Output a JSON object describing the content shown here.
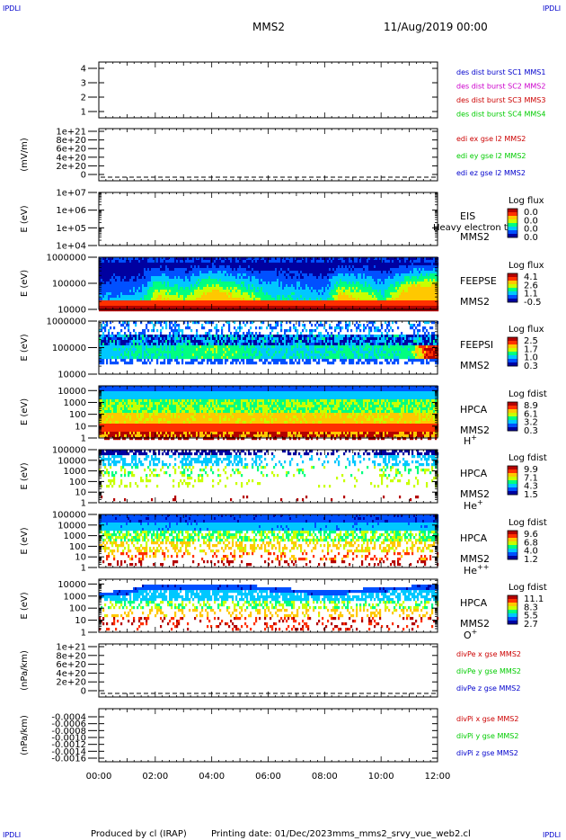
{
  "header": {
    "corner_label": "IPDLI",
    "spacecraft": "MMS2",
    "datetime": "11/Aug/2019 00:00"
  },
  "footer": {
    "produced_by": "Produced by cl (IRAP)",
    "printing_date": "Printing date: 01/Dec/2023",
    "filename": "mms_mms2_srvy_vue_web2.cl"
  },
  "colors": {
    "spectrogram_scale": [
      "#ffffff",
      "#0000a0",
      "#0050ff",
      "#00c8ff",
      "#00ff80",
      "#c8ff00",
      "#ffc800",
      "#ff3000",
      "#b40000"
    ],
    "blue": "#0000cc",
    "magenta": "#cc00cc",
    "red": "#cc0000",
    "green": "#00cc00"
  },
  "chart_data": {
    "type": "heatmap",
    "x_ticks": [
      "00:00",
      "02:00",
      "04:00",
      "06:00",
      "08:00",
      "10:00",
      "12:00"
    ],
    "x_range_hours": [
      0,
      12
    ],
    "panels": [
      {
        "id": "dist",
        "type": "line",
        "y_ticks": [
          "4",
          "3",
          "2",
          "1"
        ],
        "ylim": [
          0.6,
          4.4
        ],
        "ylabel": "",
        "legend": [
          {
            "text": "des dist burst SC1 MMS1",
            "color": "#0000cc"
          },
          {
            "text": "des dist burst SC2 MMS2",
            "color": "#cc00cc"
          },
          {
            "text": "des dist burst SC3 MMS3",
            "color": "#cc0000"
          },
          {
            "text": "des dist burst SC4 MMS4",
            "color": "#00cc00"
          }
        ]
      },
      {
        "id": "edi",
        "type": "line",
        "y_ticks": [
          "1e+21",
          "8e+20",
          "6e+20",
          "4e+20",
          "2e+20",
          "0"
        ],
        "ylim": [
          -2e+20,
          1.05e+21
        ],
        "ylabel": "(mV/m)",
        "zero_line": true,
        "legend": [
          {
            "text": "edi ex gse l2 MMS2",
            "color": "#cc0000"
          },
          {
            "text": "edi ey gse l2 MMS2",
            "color": "#00cc00"
          },
          {
            "text": "edi ez gse l2 MMS2",
            "color": "#0000cc"
          }
        ]
      },
      {
        "id": "eis",
        "type": "heatmap",
        "y_ticks": [
          "1e+07",
          "1e+06",
          "1e+05",
          "1e+04"
        ],
        "ylim_log": [
          4,
          7
        ],
        "ylabel": "E (eV)",
        "instrument": "EIS",
        "sc": "MMS2",
        "species": "",
        "overlay": "Heavy electron to",
        "cbar_title": "Log flux",
        "cbar_ticks": [
          "0.0",
          "0.0",
          "0.0",
          "0.0"
        ],
        "empty": true
      },
      {
        "id": "feepse",
        "type": "heatmap",
        "y_ticks": [
          "1000000",
          "100000",
          "10000"
        ],
        "ylim_log": [
          4,
          6
        ],
        "ylabel": "E (eV)",
        "instrument": "FEEPSE",
        "sc": "MMS2",
        "species": "",
        "cbar_title": "Log flux",
        "cbar_ticks": [
          "4.1",
          "2.6",
          "1.1",
          "-0.5"
        ],
        "profile": "feeps_e"
      },
      {
        "id": "feepsi",
        "type": "heatmap",
        "y_ticks": [
          "1000000",
          "100000",
          "10000"
        ],
        "ylim_log": [
          4,
          6
        ],
        "ylabel": "E (eV)",
        "instrument": "FEEPSI",
        "sc": "MMS2",
        "species": "",
        "cbar_title": "Log flux",
        "cbar_ticks": [
          "2.5",
          "1.7",
          "1.0",
          "0.3"
        ],
        "profile": "feeps_i"
      },
      {
        "id": "hpca_h",
        "type": "heatmap",
        "y_ticks": [
          "10000",
          "1000",
          "100",
          "10",
          "1"
        ],
        "ylim_log": [
          0,
          4.4
        ],
        "ylabel": "E (eV)",
        "instrument": "HPCA",
        "sc": "MMS2",
        "species": "H",
        "species_sup": "+",
        "cbar_title": "Log fdist",
        "cbar_ticks": [
          "8.9",
          "6.1",
          "3.2",
          "0.3"
        ],
        "profile": "hpca_h"
      },
      {
        "id": "hpca_he",
        "type": "heatmap",
        "y_ticks": [
          "100000",
          "10000",
          "1000",
          "100",
          "10",
          "1"
        ],
        "ylim_log": [
          0,
          5
        ],
        "ylabel": "E (eV)",
        "instrument": "HPCA",
        "sc": "MMS2",
        "species": "He",
        "species_sup": "+",
        "cbar_title": "Log fdist",
        "cbar_ticks": [
          "9.9",
          "7.1",
          "4.3",
          "1.5"
        ],
        "profile": "hpca_he"
      },
      {
        "id": "hpca_he2",
        "type": "heatmap",
        "y_ticks": [
          "100000",
          "10000",
          "1000",
          "100",
          "10",
          "1"
        ],
        "ylim_log": [
          0,
          5
        ],
        "ylabel": "E (eV)",
        "instrument": "HPCA",
        "sc": "MMS2",
        "species": "He",
        "species_sup": "++",
        "cbar_title": "Log fdist",
        "cbar_ticks": [
          "9.6",
          "6.8",
          "4.0",
          "1.2"
        ],
        "profile": "hpca_he2"
      },
      {
        "id": "hpca_o",
        "type": "heatmap",
        "y_ticks": [
          "10000",
          "1000",
          "100",
          "10",
          "1"
        ],
        "ylim_log": [
          0,
          4.4
        ],
        "ylabel": "E (eV)",
        "instrument": "HPCA",
        "sc": "MMS2",
        "species": "O",
        "species_sup": "+",
        "cbar_title": "Log fdist",
        "cbar_ticks": [
          "11.1",
          "8.3",
          "5.5",
          "2.7"
        ],
        "profile": "hpca_o"
      },
      {
        "id": "divpe",
        "type": "line",
        "y_ticks": [
          "1e+21",
          "8e+20",
          "6e+20",
          "4e+20",
          "2e+20",
          "0"
        ],
        "ylim": [
          -2e+20,
          1.05e+21
        ],
        "ylabel": "(nPa/km)",
        "zero_line": true,
        "legend": [
          {
            "text": "divPe x gse MMS2",
            "color": "#cc0000"
          },
          {
            "text": "divPe y gse MMS2",
            "color": "#00cc00"
          },
          {
            "text": "divPe z gse MMS2",
            "color": "#0000cc"
          }
        ]
      },
      {
        "id": "divpi",
        "type": "line",
        "y_ticks": [
          "-0.0004",
          "-0.0006",
          "-0.0008",
          "-0.0010",
          "-0.0012",
          "-0.0014",
          "-0.0016"
        ],
        "ylim": [
          -0.0016,
          -0.0003
        ],
        "ylabel": "(nPa/km)",
        "zero_line": false,
        "legend": [
          {
            "text": "divPi x gse MMS2",
            "color": "#cc0000"
          },
          {
            "text": "divPi y gse MMS2",
            "color": "#00cc00"
          },
          {
            "text": "divPi z gse MMS2",
            "color": "#0000cc"
          }
        ]
      }
    ]
  }
}
